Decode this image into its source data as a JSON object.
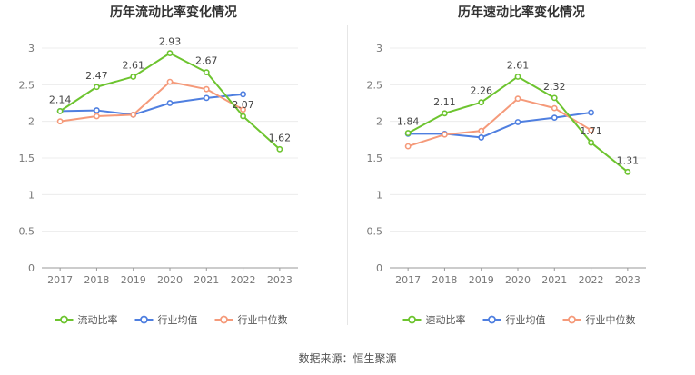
{
  "footer": {
    "source_label": "数据来源：",
    "source_name": "恒生聚源"
  },
  "colors": {
    "company": "#6dc42f",
    "industry_avg": "#4f7fe0",
    "industry_median": "#f59a7a"
  },
  "chart_data": [
    {
      "type": "line",
      "title": "历年流动比率变化情况",
      "xlabel": "",
      "ylabel": "",
      "categories": [
        "2017",
        "2018",
        "2019",
        "2020",
        "2021",
        "2022",
        "2023"
      ],
      "ylim": [
        0,
        3
      ],
      "yticks": [
        0,
        0.5,
        1,
        1.5,
        2,
        2.5,
        3
      ],
      "ytick_labels": [
        "0",
        "0.5",
        "1",
        "1.5",
        "2",
        "2.5",
        "3"
      ],
      "grid": true,
      "legend_position": "bottom",
      "series": [
        {
          "name": "流动比率",
          "color": "#6dc42f",
          "labeled": true,
          "values": [
            2.14,
            2.47,
            2.61,
            2.93,
            2.67,
            2.07,
            1.62
          ],
          "labels": [
            "2.14",
            "2.47",
            "2.61",
            "2.93",
            "2.67",
            "2.07",
            "1.62"
          ]
        },
        {
          "name": "行业均值",
          "color": "#4f7fe0",
          "labeled": false,
          "values": [
            2.14,
            2.15,
            2.09,
            2.25,
            2.32,
            2.37,
            null
          ]
        },
        {
          "name": "行业中位数",
          "color": "#f59a7a",
          "labeled": false,
          "values": [
            2.0,
            2.07,
            2.09,
            2.54,
            2.44,
            2.16,
            null
          ]
        }
      ]
    },
    {
      "type": "line",
      "title": "历年速动比率变化情况",
      "xlabel": "",
      "ylabel": "",
      "categories": [
        "2017",
        "2018",
        "2019",
        "2020",
        "2021",
        "2022",
        "2023"
      ],
      "ylim": [
        0,
        3
      ],
      "yticks": [
        0,
        0.5,
        1,
        1.5,
        2,
        2.5,
        3
      ],
      "ytick_labels": [
        "0",
        "0.5",
        "1",
        "1.5",
        "2",
        "2.5",
        "3"
      ],
      "grid": true,
      "legend_position": "bottom",
      "series": [
        {
          "name": "速动比率",
          "color": "#6dc42f",
          "labeled": true,
          "values": [
            1.84,
            2.11,
            2.26,
            2.61,
            2.32,
            1.71,
            1.31
          ],
          "labels": [
            "1.84",
            "2.11",
            "2.26",
            "2.61",
            "2.32",
            "1.71",
            "1.31"
          ]
        },
        {
          "name": "行业均值",
          "color": "#4f7fe0",
          "labeled": false,
          "values": [
            1.83,
            1.83,
            1.78,
            1.99,
            2.05,
            2.12,
            null
          ]
        },
        {
          "name": "行业中位数",
          "color": "#f59a7a",
          "labeled": false,
          "values": [
            1.66,
            1.82,
            1.87,
            2.31,
            2.18,
            1.88,
            null
          ]
        }
      ]
    }
  ]
}
